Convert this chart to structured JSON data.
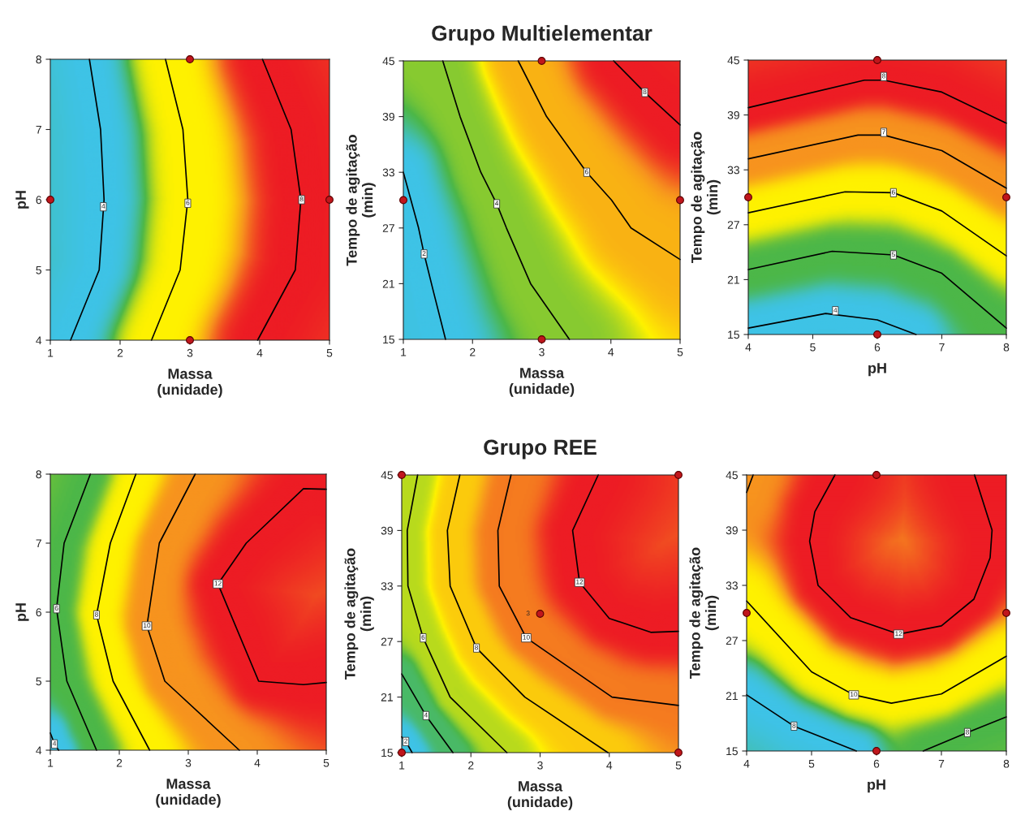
{
  "chart_data": [
    {
      "type": "line",
      "xlabel": "Massa\n(unidade)",
      "ylabel": "pH",
      "xlim": [
        1,
        5
      ],
      "ylim": [
        4,
        8
      ],
      "xticks": [
        1,
        2,
        3,
        4,
        5
      ],
      "yticks": [
        4,
        5,
        6,
        7,
        8
      ],
      "grid": false,
      "marker": "none",
      "line_style": "solid",
      "series": [
        {
          "color": "#000000",
          "x": [
            1.56,
            1.72,
            1.77,
            1.7,
            1.29
          ],
          "values": [
            8,
            7,
            6,
            5,
            4
          ]
        },
        {
          "color": "#000000",
          "x": [
            2.65,
            2.9,
            2.97,
            2.86,
            2.45
          ],
          "values": [
            8,
            7,
            6,
            5,
            4
          ]
        },
        {
          "color": "#000000",
          "x": [
            4.04,
            4.45,
            4.59,
            4.51,
            3.97
          ],
          "values": [
            8,
            7,
            6,
            5,
            4
          ]
        },
        {
          "type": "scatter",
          "marker": "circle",
          "color": "#c0161c",
          "x": [
            1,
            3,
            3,
            5
          ],
          "values": [
            6,
            8,
            4,
            6
          ]
        }
      ],
      "annotations": [
        {
          "text": "4",
          "x": 1.76,
          "y": 5.9
        },
        {
          "text": "6",
          "x": 2.97,
          "y": 5.95
        },
        {
          "text": "8",
          "x": 4.6,
          "y": 6.0
        }
      ]
    },
    {
      "type": "line",
      "title": "Grupo Multielementar",
      "xlabel": "Massa\n(unidade)",
      "ylabel": "Tempo de agitação\n(min)",
      "xlim": [
        1,
        5
      ],
      "ylim": [
        15,
        45
      ],
      "xticks": [
        1,
        2,
        3,
        4,
        5
      ],
      "yticks": [
        15,
        21,
        27,
        33,
        39,
        45
      ],
      "grid": false,
      "marker": "none",
      "line_style": "solid",
      "series": [
        {
          "color": "#000000",
          "x": [
            1,
            1.22,
            1.3,
            1.44,
            1.61
          ],
          "values": [
            33,
            27,
            24.2,
            20,
            15
          ]
        },
        {
          "color": "#000000",
          "x": [
            1.57,
            1.82,
            2.12,
            2.35,
            2.49,
            2.84,
            3.4
          ],
          "values": [
            45,
            39,
            33,
            29.6,
            27,
            21,
            15
          ]
        },
        {
          "color": "#000000",
          "x": [
            2.66,
            3.07,
            3.65,
            4.01,
            4.29,
            5
          ],
          "values": [
            45,
            39,
            33,
            30,
            27,
            23.6
          ]
        },
        {
          "color": "#000000",
          "x": [
            4.04,
            4.49,
            5
          ],
          "values": [
            45,
            41.6,
            38.1
          ]
        },
        {
          "type": "scatter",
          "marker": "circle",
          "color": "#c0161c",
          "x": [
            3,
            3,
            1,
            5
          ],
          "values": [
            45,
            15,
            30,
            30
          ]
        }
      ],
      "annotations": [
        {
          "text": "2",
          "x": 1.3,
          "y": 24.2
        },
        {
          "text": "4",
          "x": 2.35,
          "y": 29.6
        },
        {
          "text": "6",
          "x": 3.65,
          "y": 33
        },
        {
          "text": "8",
          "x": 4.49,
          "y": 41.6
        }
      ]
    },
    {
      "type": "line",
      "xlabel": "pH",
      "ylabel": "Tempo de agitação\n(min)",
      "xlim": [
        4,
        8
      ],
      "ylim": [
        15,
        45
      ],
      "xticks": [
        4,
        5,
        6,
        7,
        8
      ],
      "yticks": [
        15,
        21,
        27,
        33,
        39,
        45
      ],
      "grid": false,
      "marker": "none",
      "line_style": "solid",
      "series": [
        {
          "color": "#000000",
          "x": [
            4,
            5.2,
            6,
            6.6
          ],
          "values": [
            15.7,
            17.3,
            16.6,
            15
          ]
        },
        {
          "color": "#000000",
          "x": [
            4,
            5.3,
            6.25,
            7,
            8
          ],
          "values": [
            22.1,
            24.1,
            23.7,
            21.7,
            15.7
          ]
        },
        {
          "color": "#000000",
          "x": [
            4,
            5.5,
            6.25,
            7,
            8
          ],
          "values": [
            28.3,
            30.6,
            30.5,
            28.5,
            23.6
          ]
        },
        {
          "color": "#000000",
          "x": [
            4,
            5.7,
            6.1,
            7,
            8
          ],
          "values": [
            34.2,
            36.8,
            36.8,
            35.1,
            31.0
          ]
        },
        {
          "color": "#000000",
          "x": [
            4,
            5.8,
            6.1,
            7,
            8
          ],
          "values": [
            39.8,
            42.8,
            42.8,
            41.5,
            38.1
          ]
        },
        {
          "type": "scatter",
          "marker": "circle",
          "color": "#c0161c",
          "x": [
            6,
            6,
            4,
            8
          ],
          "values": [
            45,
            15,
            30,
            30
          ]
        }
      ],
      "annotations": [
        {
          "text": "4",
          "x": 5.35,
          "y": 17.6
        },
        {
          "text": "5",
          "x": 6.25,
          "y": 23.7
        },
        {
          "text": "6",
          "x": 6.25,
          "y": 30.5
        },
        {
          "text": "7",
          "x": 6.1,
          "y": 37.1
        },
        {
          "text": "8",
          "x": 6.1,
          "y": 43.2
        }
      ]
    },
    {
      "type": "line",
      "xlabel": "Massa\n(unidade)",
      "ylabel": "pH",
      "xlim": [
        1,
        5
      ],
      "ylim": [
        4,
        8
      ],
      "xticks": [
        1,
        2,
        3,
        4,
        5
      ],
      "yticks": [
        4,
        5,
        6,
        7,
        8
      ],
      "grid": false,
      "marker": "none",
      "line_style": "solid",
      "series": [
        {
          "color": "#000000",
          "x": [
            1,
            1.06,
            1.12
          ],
          "values": [
            4.25,
            4.09,
            4
          ]
        },
        {
          "color": "#000000",
          "x": [
            1.58,
            1.2,
            1.09,
            1.24,
            1.67
          ],
          "values": [
            8,
            7,
            6.05,
            5,
            4
          ]
        },
        {
          "color": "#000000",
          "x": [
            2.24,
            1.87,
            1.67,
            1.91,
            2.44
          ],
          "values": [
            8,
            7,
            5.96,
            5,
            4
          ]
        },
        {
          "color": "#000000",
          "x": [
            3.1,
            2.58,
            2.4,
            2.66,
            3.74
          ],
          "values": [
            8,
            7,
            5.8,
            5,
            4
          ]
        },
        {
          "color": "#000000",
          "x": [
            5,
            4.67,
            3.84,
            3.43,
            4.02,
            4.67,
            5
          ],
          "values": [
            7.78,
            7.79,
            7,
            6.41,
            5,
            4.95,
            4.98
          ]
        }
      ],
      "annotations": [
        {
          "text": "4",
          "x": 1.06,
          "y": 4.09
        },
        {
          "text": "6",
          "x": 1.09,
          "y": 6.05
        },
        {
          "text": "8",
          "x": 1.67,
          "y": 5.96
        },
        {
          "text": "10",
          "x": 2.4,
          "y": 5.8
        },
        {
          "text": "12",
          "x": 3.43,
          "y": 6.41
        }
      ]
    },
    {
      "type": "line",
      "title": "Grupo REE",
      "xlabel": "Massa\n(unidade)",
      "ylabel": "Tempo de agitação\n(min)",
      "xlim": [
        1,
        5
      ],
      "ylim": [
        15,
        45
      ],
      "xticks": [
        1,
        2,
        3,
        4,
        5
      ],
      "yticks": [
        15,
        21,
        27,
        33,
        39,
        45
      ],
      "grid": false,
      "marker": "none",
      "line_style": "solid",
      "series": [
        {
          "color": "#000000",
          "x": [
            1,
            1.06,
            1.15
          ],
          "values": [
            16.7,
            16.2,
            15
          ]
        },
        {
          "color": "#000000",
          "x": [
            1,
            1.35,
            1.74
          ],
          "values": [
            23.5,
            19.0,
            15
          ]
        },
        {
          "color": "#000000",
          "x": [
            1.23,
            1.08,
            1.09,
            1.31,
            1.7,
            2.52
          ],
          "values": [
            45,
            39,
            33,
            27.4,
            21,
            15
          ]
        },
        {
          "color": "#000000",
          "x": [
            1.84,
            1.66,
            1.7,
            2.08,
            2.78,
            3.98
          ],
          "values": [
            45,
            39,
            33,
            26.3,
            21,
            15
          ]
        },
        {
          "color": "#000000",
          "x": [
            2.58,
            2.39,
            2.41,
            2.8,
            4.04,
            5
          ],
          "values": [
            45,
            39,
            33,
            27.4,
            21,
            20.1
          ]
        },
        {
          "color": "#000000",
          "x": [
            3.84,
            3.47,
            3.57,
            4,
            4.6,
            5
          ],
          "values": [
            45,
            39,
            33.4,
            29.5,
            28.0,
            28.1
          ]
        },
        {
          "type": "scatter",
          "marker": "circle",
          "color": "#c0161c",
          "x": [
            1,
            5,
            1,
            5,
            3
          ],
          "values": [
            45,
            45,
            15,
            15,
            30
          ]
        }
      ],
      "annotations": [
        {
          "text": "2",
          "x": 1.06,
          "y": 16.2
        },
        {
          "text": "4",
          "x": 1.35,
          "y": 19.0
        },
        {
          "text": "6",
          "x": 1.31,
          "y": 27.4
        },
        {
          "text": "8",
          "x": 2.08,
          "y": 26.3
        },
        {
          "text": "10",
          "x": 2.8,
          "y": 27.4
        },
        {
          "text": "12",
          "x": 3.57,
          "y": 33.4
        },
        {
          "text": "3",
          "x": 3,
          "y": 30
        }
      ]
    },
    {
      "type": "line",
      "xlabel": "pH",
      "ylabel": "Tempo de agitação\n(min)",
      "xlim": [
        4,
        8
      ],
      "ylim": [
        15,
        45
      ],
      "xticks": [
        4,
        5,
        6,
        7,
        8
      ],
      "yticks": [
        15,
        21,
        27,
        33,
        39,
        45
      ],
      "grid": false,
      "marker": "none",
      "line_style": "solid",
      "series": [
        {
          "color": "#000000",
          "x": [
            4,
            4.73,
            5.69
          ],
          "values": [
            21.1,
            17.7,
            15
          ]
        },
        {
          "color": "#000000",
          "x": [
            6.72,
            7.4,
            8
          ],
          "values": [
            15,
            17.0,
            18.7
          ]
        },
        {
          "color": "#000000",
          "x": [
            4,
            5,
            5.65,
            6.23,
            7,
            8
          ],
          "values": [
            31.3,
            23.6,
            21.1,
            20.2,
            21.2,
            25.3
          ]
        },
        {
          "color": "#000000",
          "x": [
            4,
            4.1
          ],
          "values": [
            43.1,
            45
          ]
        },
        {
          "color": "#000000",
          "x": [
            5.36,
            5.05,
            4.97,
            5.1,
            5.6,
            6.34,
            7.0,
            7.5,
            7.75,
            7.78,
            7.51
          ],
          "values": [
            45,
            41,
            37.8,
            33,
            29.5,
            27.7,
            28.6,
            31.5,
            36,
            39,
            45
          ]
        },
        {
          "type": "scatter",
          "marker": "circle",
          "color": "#c0161c",
          "x": [
            6,
            6,
            4,
            8
          ],
          "values": [
            45,
            15,
            30,
            30
          ]
        }
      ],
      "annotations": [
        {
          "text": "8",
          "x": 4.73,
          "y": 17.7
        },
        {
          "text": "8",
          "x": 7.4,
          "y": 17.0
        },
        {
          "text": "10",
          "x": 5.65,
          "y": 21.1
        },
        {
          "text": "12",
          "x": 6.34,
          "y": 27.7
        }
      ]
    }
  ]
}
